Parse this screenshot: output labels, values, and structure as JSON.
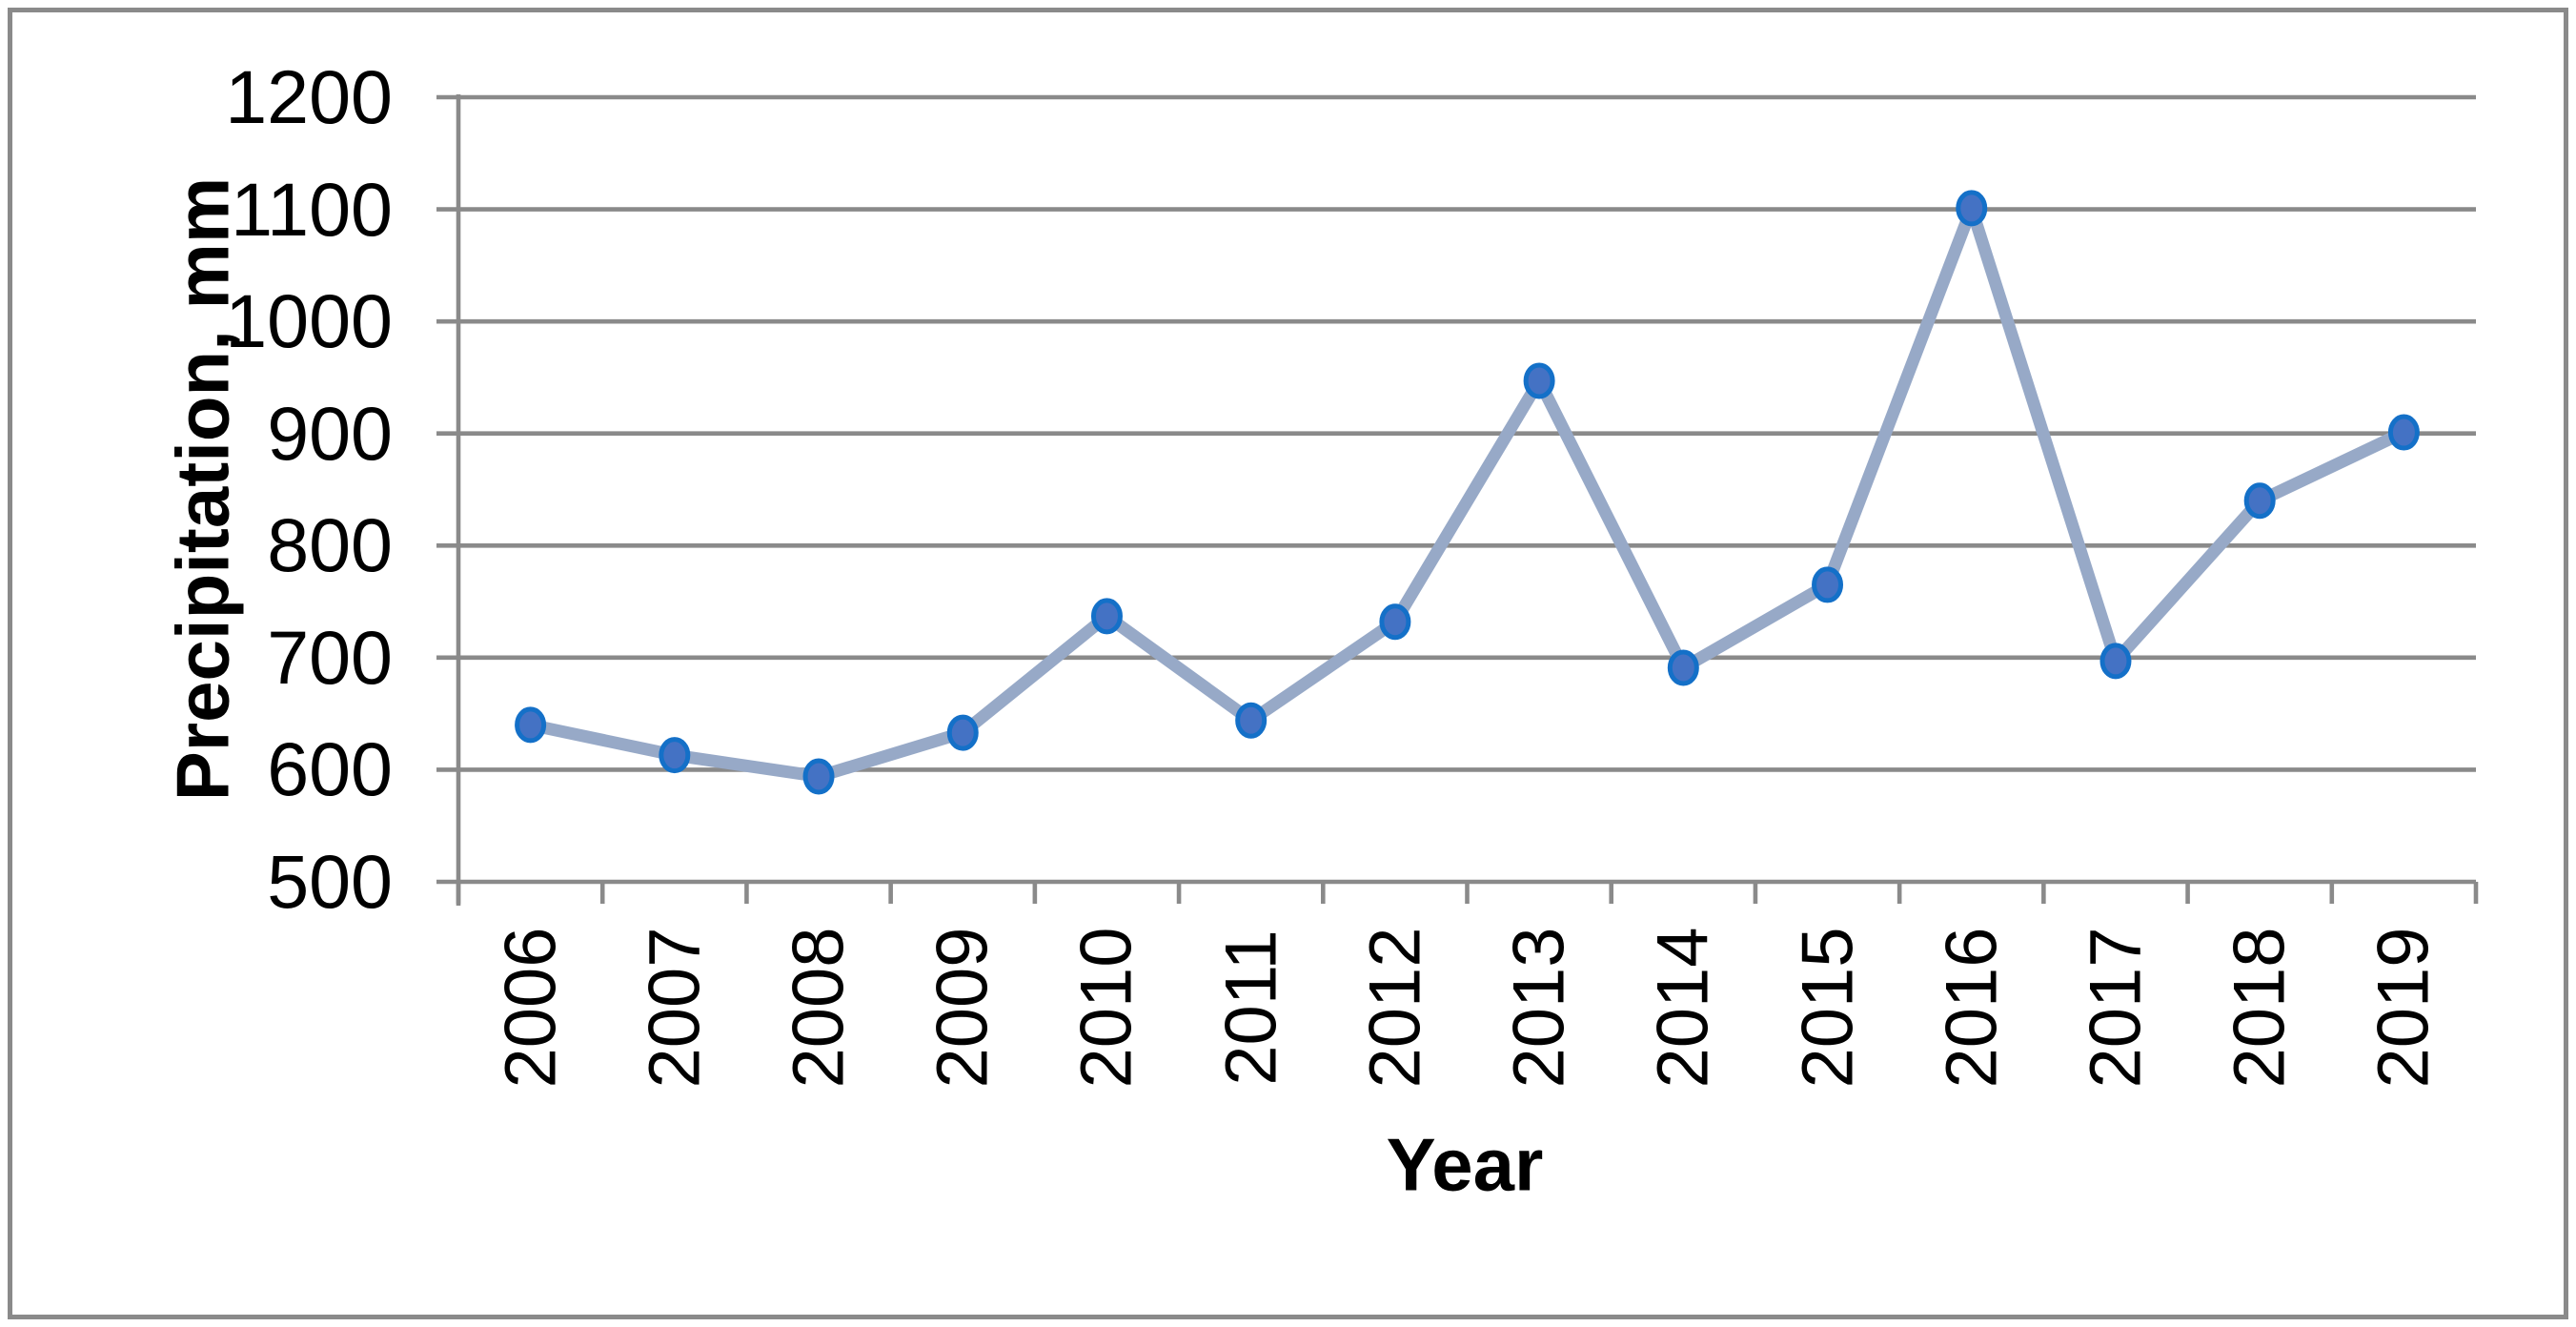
{
  "chart_data": {
    "type": "line",
    "x": [
      "2006",
      "2007",
      "2008",
      "2009",
      "2010",
      "2011",
      "2012",
      "2013",
      "2014",
      "2015",
      "2016",
      "2017",
      "2018",
      "2019"
    ],
    "values": [
      640,
      613,
      594,
      633,
      737,
      644,
      732,
      947,
      691,
      765,
      1101,
      697,
      840,
      901
    ],
    "series_name": "Precipitation",
    "title": "",
    "xlabel": "Year",
    "ylabel": "Precipitation, mm",
    "ylim": [
      500,
      1200
    ],
    "y_tick_step": 100,
    "y_tick_labels": [
      "1200",
      "1100",
      "1000",
      "900",
      "800",
      "700",
      "600",
      "500"
    ],
    "grid": true,
    "legend_position": "none"
  },
  "axes": {
    "y_title": "Precipitation, mm",
    "x_title": "Year"
  },
  "colors": {
    "series_line": "#97a9c7",
    "marker_fill": "#4472c4",
    "marker_border": "#1470c8",
    "gridline": "#8a8a8a",
    "axis_line": "#8a8a8a",
    "text": "#000000",
    "frame_border": "#8a8a8a",
    "background": "#ffffff"
  }
}
